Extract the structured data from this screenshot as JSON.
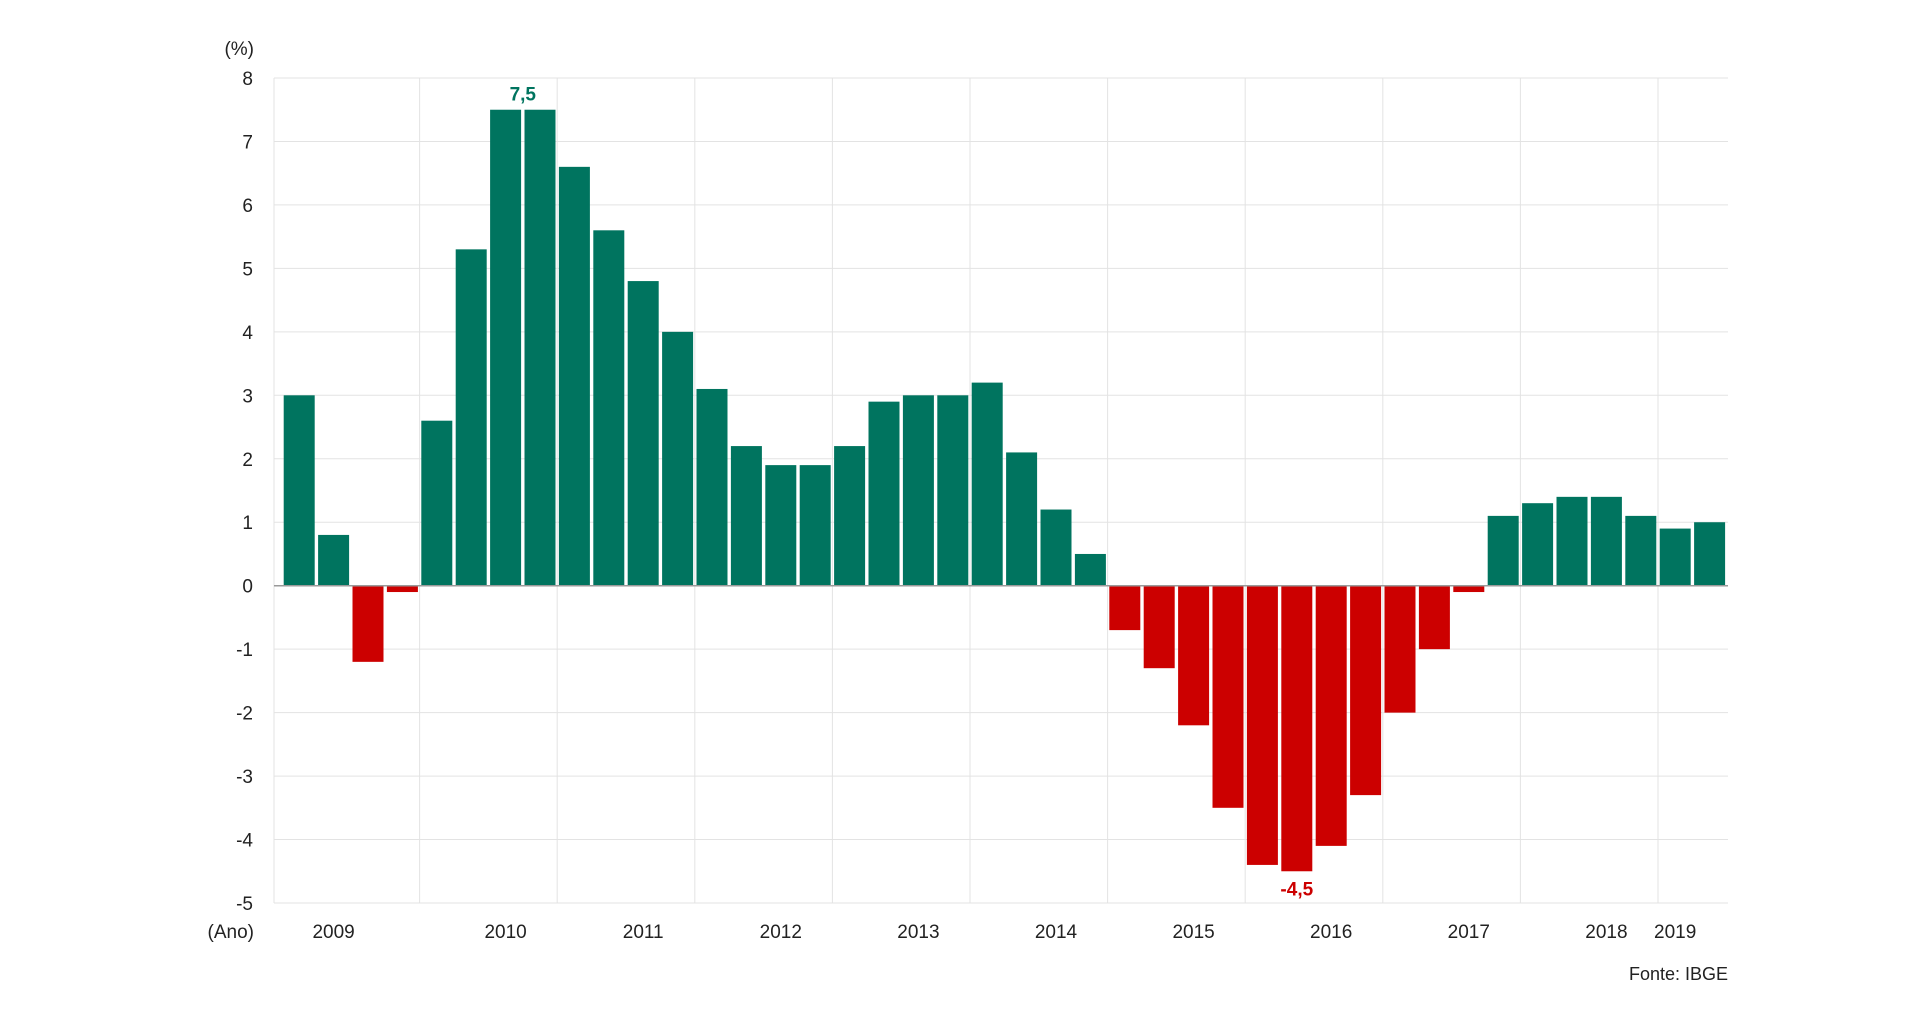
{
  "chart_data": {
    "type": "bar",
    "title": "",
    "ylabel": "(%)",
    "xlabel": "(Ano)",
    "ylim": [
      -5,
      8
    ],
    "yticks": [
      8,
      7,
      6,
      5,
      4,
      3,
      2,
      1,
      0,
      -1,
      -2,
      -3,
      -4,
      -5
    ],
    "grid": true,
    "colors": {
      "positive": "#00745f",
      "negative": "#cc0000",
      "grid": "#e3e3e3",
      "axis": "#9a9a9a"
    },
    "values": [
      3.0,
      0.8,
      -1.2,
      -0.1,
      2.6,
      5.3,
      7.5,
      7.5,
      6.6,
      5.6,
      4.8,
      4.0,
      3.1,
      2.2,
      1.9,
      1.9,
      2.2,
      2.9,
      3.0,
      3.0,
      3.2,
      2.1,
      1.2,
      0.5,
      -0.7,
      -1.3,
      -2.2,
      -3.5,
      -4.4,
      -4.5,
      -4.1,
      -3.3,
      -2.0,
      -1.0,
      -0.1,
      1.1,
      1.3,
      1.4,
      1.4,
      1.1,
      0.9,
      1.0
    ],
    "year_labels": [
      "2009",
      "2010",
      "2011",
      "2012",
      "2013",
      "2014",
      "2015",
      "2016",
      "2017",
      "2018",
      "2019"
    ],
    "year_label_positions": [
      1.5,
      6.5,
      10.5,
      14.5,
      18.5,
      22.5,
      26.5,
      30.5,
      34.5,
      38.5,
      40.5
    ],
    "year_separators": [
      4,
      8,
      12,
      16,
      20,
      24,
      28,
      32,
      36,
      40
    ],
    "data_labels": [
      {
        "text": "7,5",
        "index": 6.5,
        "value": 7.5,
        "color": "#00745f"
      },
      {
        "text": "-4,5",
        "index": 29,
        "value": -4.5,
        "color": "#cc0000"
      }
    ],
    "source": "Fonte: IBGE"
  }
}
